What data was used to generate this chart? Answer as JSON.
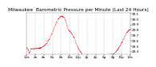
{
  "title": "Milwaukee  Barometric Pressure per Minute (Last 24 Hours)",
  "line_color": "#ff0000",
  "bg_color": "#ffffff",
  "plot_bg": "#ffffff",
  "grid_color": "#aaaaaa",
  "ylim": [
    29.35,
    30.12
  ],
  "yticks": [
    29.4,
    29.5,
    29.6,
    29.7,
    29.8,
    29.9,
    30.0,
    30.1
  ],
  "ytick_labels": [
    "29.4",
    "29.5",
    "29.6",
    "29.7",
    "29.8",
    "29.9",
    "30.0",
    "30.1"
  ],
  "xlim": [
    0,
    1440
  ],
  "xticks": [
    0,
    120,
    240,
    360,
    480,
    600,
    720,
    840,
    960,
    1080,
    1200,
    1320,
    1440
  ],
  "xtick_labels": [
    "12a",
    "2a",
    "4a",
    "6a",
    "8a",
    "10a",
    "12p",
    "2p",
    "4p",
    "6p",
    "8p",
    "10p",
    "12a"
  ],
  "num_points": 1440,
  "title_fontsize": 4.2,
  "tick_fontsize": 3.0,
  "linewidth": 0.6,
  "marker_size": 0.6
}
